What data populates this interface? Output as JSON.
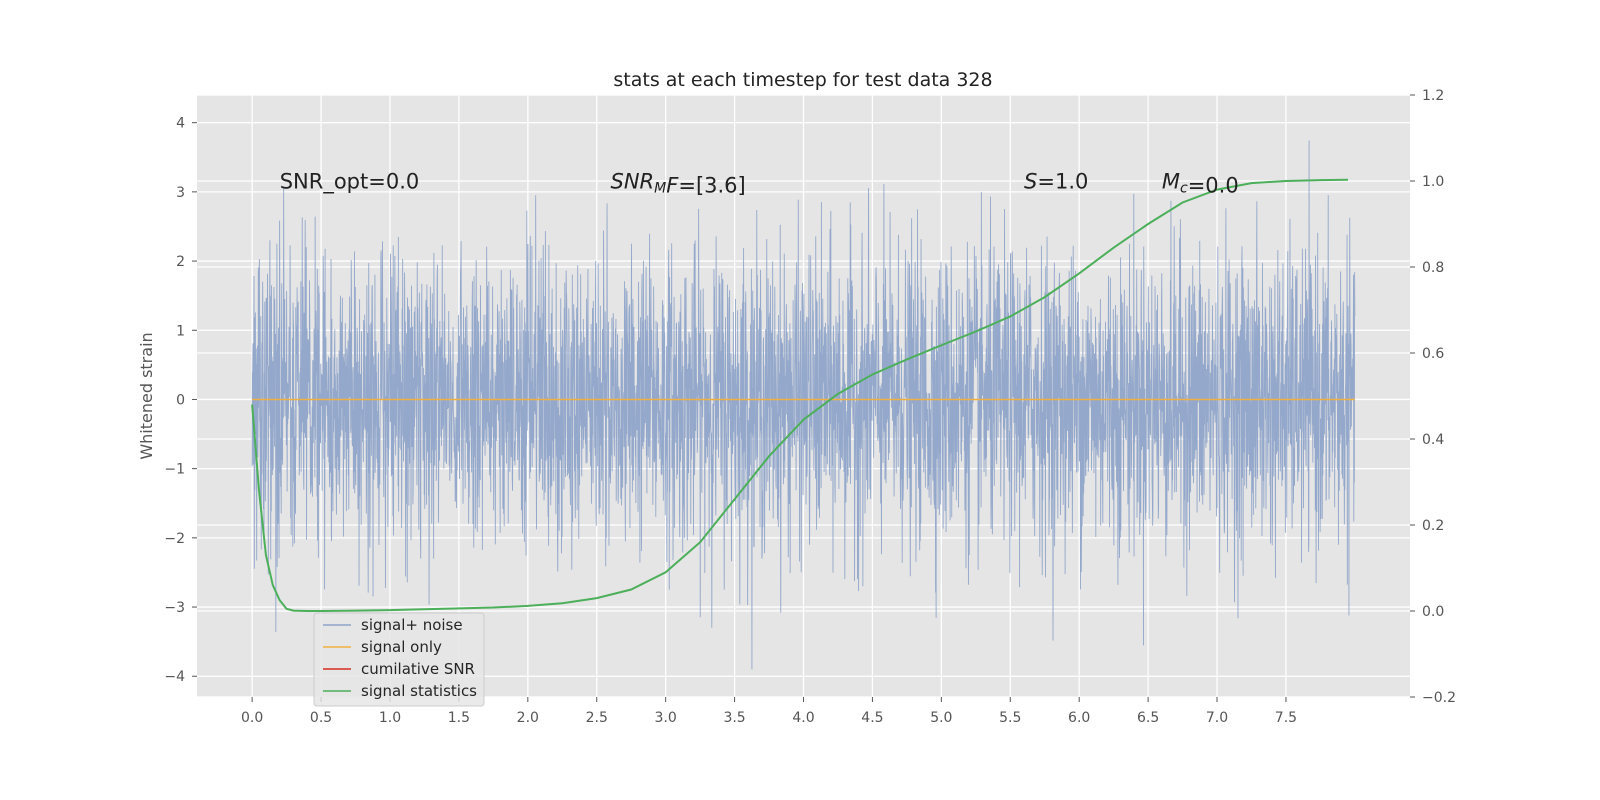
{
  "chart_data": {
    "type": "line",
    "title": "stats at each timestep for test data 328",
    "ylabel": "Whitened strain",
    "y2label": "",
    "xlim": [
      -0.4,
      8.4
    ],
    "ylim": [
      -4.3,
      4.4
    ],
    "y2lim": [
      -0.2,
      1.2
    ],
    "x_ticks": [
      0.0,
      0.5,
      1.0,
      1.5,
      2.0,
      2.5,
      3.0,
      3.5,
      4.0,
      4.5,
      5.0,
      5.5,
      6.0,
      6.5,
      7.0,
      7.5
    ],
    "x_tick_labels": [
      "0.0",
      "0.5",
      "1.0",
      "1.5",
      "2.0",
      "2.5",
      "3.0",
      "3.5",
      "4.0",
      "4.5",
      "5.0",
      "5.5",
      "6.0",
      "6.5",
      "7.0",
      "7.5"
    ],
    "y_ticks": [
      4,
      3,
      2,
      1,
      0,
      -1,
      -2,
      -3,
      -4
    ],
    "y_tick_labels": [
      "4",
      "3",
      "2",
      "1",
      "0",
      "−1",
      "−2",
      "−3",
      "−4"
    ],
    "y2_ticks": [
      1.2,
      1.0,
      0.8,
      0.6,
      0.4,
      0.2,
      0.0,
      -0.2
    ],
    "y2_tick_labels": [
      "1.2",
      "1.0",
      "0.8",
      "0.6",
      "0.4",
      "0.2",
      "0.0",
      "−0.2"
    ],
    "grid": true,
    "style": "ggplot",
    "legend_position": "lower-left",
    "annotations": [
      {
        "text": "SNR_opt=0.0",
        "x": 0.2,
        "y": 3.15
      },
      {
        "parts": [
          {
            "t": "SNR",
            "style": "italic"
          },
          {
            "t": "M",
            "style": "italic-sub"
          },
          {
            "t": "F",
            "style": "italic"
          },
          {
            "t": "=[3.6]",
            "style": "normal"
          }
        ],
        "x": 2.6,
        "y": 3.15
      },
      {
        "parts": [
          {
            "t": "S",
            "style": "italic"
          },
          {
            "t": "=1.0",
            "style": "normal"
          }
        ],
        "x": 5.6,
        "y": 3.15
      },
      {
        "parts": [
          {
            "t": "M",
            "style": "italic"
          },
          {
            "t": "c",
            "style": "italic-sub"
          },
          {
            "t": "=0.0",
            "style": "normal"
          }
        ],
        "x": 6.6,
        "y": 3.15
      }
    ],
    "series": [
      {
        "name": "signal+ noise",
        "color": "#8fa4c9",
        "axis": "left",
        "kind": "noise",
        "x_range": [
          0.0,
          8.0
        ],
        "y_range_observed": [
          -3.9,
          4.0
        ]
      },
      {
        "name": "signal only",
        "color": "#f0b041",
        "axis": "left",
        "x": [
          0.0,
          8.0
        ],
        "y": [
          0.0,
          0.0
        ]
      },
      {
        "name": "cumilative SNR",
        "color": "#d62d20",
        "axis": "left",
        "x": [],
        "y": []
      },
      {
        "name": "signal statistics",
        "color": "#4caf5a",
        "axis": "right",
        "x": [
          0.0,
          0.05,
          0.1,
          0.15,
          0.2,
          0.25,
          0.3,
          0.4,
          0.5,
          0.75,
          1.0,
          1.25,
          1.5,
          1.75,
          2.0,
          2.25,
          2.5,
          2.75,
          3.0,
          3.25,
          3.5,
          3.75,
          4.0,
          4.25,
          4.5,
          4.75,
          5.0,
          5.25,
          5.5,
          5.75,
          6.0,
          6.25,
          6.5,
          6.75,
          7.0,
          7.25,
          7.5,
          7.75,
          7.95
        ],
        "y": [
          0.48,
          0.28,
          0.13,
          0.06,
          0.025,
          0.005,
          0.001,
          0.0,
          0.0,
          0.001,
          0.002,
          0.004,
          0.006,
          0.008,
          0.012,
          0.018,
          0.03,
          0.05,
          0.09,
          0.16,
          0.26,
          0.36,
          0.445,
          0.505,
          0.55,
          0.585,
          0.618,
          0.65,
          0.685,
          0.73,
          0.785,
          0.845,
          0.9,
          0.95,
          0.98,
          0.995,
          1.0,
          1.002,
          1.003
        ]
      }
    ]
  }
}
